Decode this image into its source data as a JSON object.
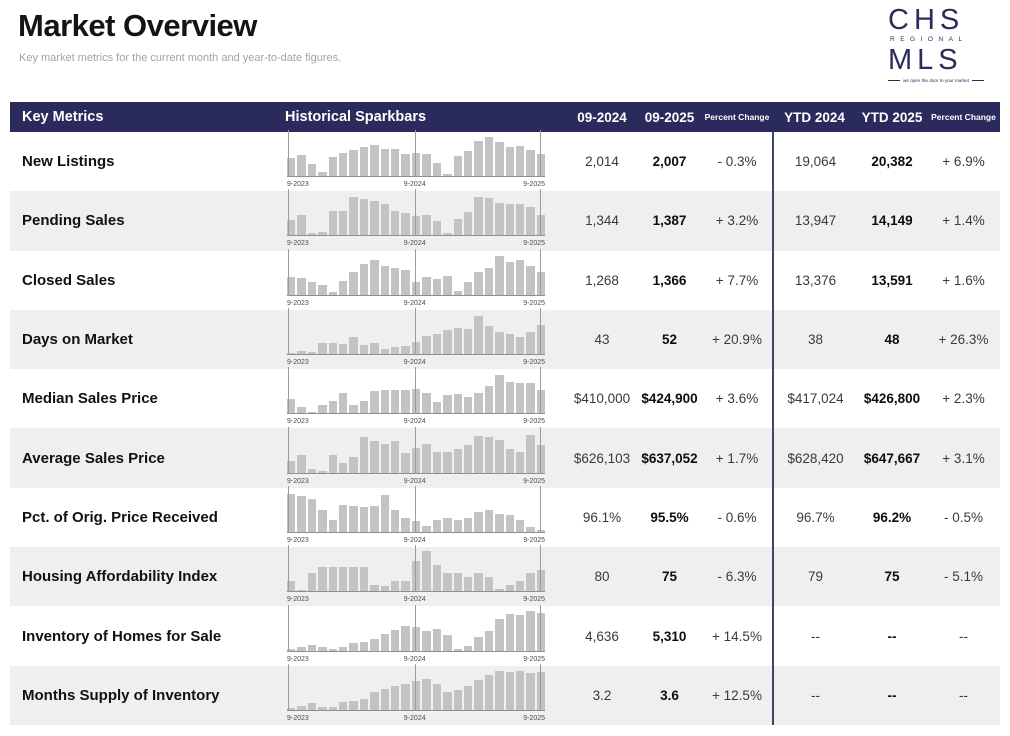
{
  "page": {
    "title": "Market Overview",
    "subtitle": "Key market metrics for the current month and year-to-date figures."
  },
  "logo": {
    "line1": "CHS",
    "line2": "REGIONAL",
    "line3": "MLS",
    "tagline": "we open the door to your market",
    "color": "#2b2b5e"
  },
  "colors": {
    "header_navy": "#2a2a5c",
    "divider_navy": "#44446a",
    "alt_row": "#efefef",
    "bar_gray": "#c3c3c3"
  },
  "table": {
    "headers": {
      "key_metrics": "Key Metrics",
      "sparkbars": "Historical Sparkbars",
      "month_prev": "09-2024",
      "month_curr": "09-2025",
      "pct_change": "Percent Change",
      "ytd_prev": "YTD 2024",
      "ytd_curr": "YTD 2025",
      "ytd_pct_change": "Percent Change"
    },
    "axis_labels": [
      "9-2023",
      "9-2024",
      "9-2025"
    ],
    "rows": [
      {
        "metric": "New Listings",
        "month_prev": "2,014",
        "month_curr": "2,007",
        "pct": "- 0.3%",
        "ytd_prev": "19,064",
        "ytd_curr": "20,382",
        "ytd_pct": "+ 6.9%",
        "spark": [
          0.45,
          0.52,
          0.3,
          0.1,
          0.48,
          0.58,
          0.65,
          0.72,
          0.78,
          0.68,
          0.68,
          0.55,
          0.58,
          0.55,
          0.32,
          0.05,
          0.5,
          0.62,
          0.88,
          0.98,
          0.85,
          0.72,
          0.75,
          0.65,
          0.55
        ]
      },
      {
        "metric": "Pending Sales",
        "month_prev": "1,344",
        "month_curr": "1,387",
        "pct": "+ 3.2%",
        "ytd_prev": "13,947",
        "ytd_curr": "14,149",
        "ytd_pct": "+ 1.4%",
        "spark": [
          0.38,
          0.5,
          0.06,
          0.08,
          0.6,
          0.6,
          0.95,
          0.9,
          0.85,
          0.78,
          0.62,
          0.55,
          0.48,
          0.5,
          0.35,
          0.06,
          0.42,
          0.58,
          0.97,
          0.93,
          0.82,
          0.78,
          0.78,
          0.7,
          0.52
        ]
      },
      {
        "metric": "Closed Sales",
        "month_prev": "1,268",
        "month_curr": "1,366",
        "pct": "+ 7.7%",
        "ytd_prev": "13,376",
        "ytd_curr": "13,591",
        "ytd_pct": "+ 1.6%",
        "spark": [
          0.45,
          0.42,
          0.32,
          0.25,
          0.06,
          0.35,
          0.58,
          0.78,
          0.88,
          0.72,
          0.68,
          0.62,
          0.32,
          0.45,
          0.4,
          0.48,
          0.1,
          0.32,
          0.58,
          0.68,
          0.98,
          0.82,
          0.88,
          0.72,
          0.58
        ]
      },
      {
        "metric": "Days on Market",
        "month_prev": "43",
        "month_curr": "52",
        "pct": "+ 20.9%",
        "ytd_prev": "38",
        "ytd_curr": "48",
        "ytd_pct": "+ 26.3%",
        "spark": [
          0.03,
          0.08,
          0.06,
          0.28,
          0.28,
          0.26,
          0.42,
          0.22,
          0.28,
          0.13,
          0.17,
          0.2,
          0.3,
          0.45,
          0.5,
          0.6,
          0.65,
          0.62,
          0.95,
          0.7,
          0.55,
          0.5,
          0.42,
          0.55,
          0.72
        ]
      },
      {
        "metric": "Median Sales Price",
        "month_prev": "$410,000",
        "month_curr": "$424,900",
        "pct": "+ 3.6%",
        "ytd_prev": "$417,024",
        "ytd_curr": "$426,800",
        "ytd_pct": "+ 2.3%",
        "spark": [
          0.35,
          0.15,
          0.04,
          0.22,
          0.32,
          0.5,
          0.2,
          0.3,
          0.55,
          0.58,
          0.58,
          0.58,
          0.62,
          0.5,
          0.28,
          0.45,
          0.48,
          0.42,
          0.5,
          0.68,
          0.95,
          0.78,
          0.75,
          0.75,
          0.58
        ]
      },
      {
        "metric": "Average Sales Price",
        "month_prev": "$626,103",
        "month_curr": "$637,052",
        "pct": "+ 1.7%",
        "ytd_prev": "$628,420",
        "ytd_curr": "$647,667",
        "ytd_pct": "+ 3.1%",
        "spark": [
          0.3,
          0.45,
          0.08,
          0.05,
          0.45,
          0.25,
          0.38,
          0.9,
          0.8,
          0.72,
          0.78,
          0.5,
          0.62,
          0.72,
          0.52,
          0.52,
          0.6,
          0.7,
          0.92,
          0.9,
          0.82,
          0.6,
          0.52,
          0.95,
          0.68
        ]
      },
      {
        "metric": "Pct. of Orig. Price Received",
        "month_prev": "96.1%",
        "month_curr": "95.5%",
        "pct": "- 0.6%",
        "ytd_prev": "96.7%",
        "ytd_curr": "96.2%",
        "ytd_pct": "- 0.5%",
        "spark": [
          0.95,
          0.9,
          0.82,
          0.55,
          0.3,
          0.68,
          0.65,
          0.62,
          0.65,
          0.92,
          0.55,
          0.35,
          0.28,
          0.15,
          0.3,
          0.35,
          0.3,
          0.35,
          0.5,
          0.55,
          0.45,
          0.42,
          0.3,
          0.12,
          0.03
        ]
      },
      {
        "metric": "Housing Affordability Index",
        "month_prev": "80",
        "month_curr": "75",
        "pct": "- 6.3%",
        "ytd_prev": "79",
        "ytd_curr": "75",
        "ytd_pct": "- 5.1%",
        "spark": [
          0.25,
          0.04,
          0.45,
          0.6,
          0.6,
          0.6,
          0.6,
          0.6,
          0.15,
          0.12,
          0.26,
          0.26,
          0.75,
          1.0,
          0.65,
          0.45,
          0.45,
          0.35,
          0.45,
          0.35,
          0.06,
          0.15,
          0.26,
          0.45,
          0.52
        ]
      },
      {
        "metric": "Inventory of Homes for Sale",
        "month_prev": "4,636",
        "month_curr": "5,310",
        "pct": "+ 14.5%",
        "ytd_prev": "--",
        "ytd_curr": "--",
        "ytd_pct": "--",
        "spark": [
          0.03,
          0.1,
          0.15,
          0.08,
          0.05,
          0.1,
          0.18,
          0.22,
          0.3,
          0.42,
          0.52,
          0.62,
          0.6,
          0.48,
          0.55,
          0.4,
          0.02,
          0.12,
          0.35,
          0.5,
          0.8,
          0.92,
          0.88,
          0.98,
          0.95
        ]
      },
      {
        "metric": "Months Supply of Inventory",
        "month_prev": "3.2",
        "month_curr": "3.6",
        "pct": "+ 12.5%",
        "ytd_prev": "--",
        "ytd_curr": "--",
        "ytd_pct": "--",
        "spark": [
          0.04,
          0.1,
          0.18,
          0.08,
          0.08,
          0.2,
          0.22,
          0.28,
          0.45,
          0.52,
          0.6,
          0.65,
          0.72,
          0.78,
          0.65,
          0.45,
          0.5,
          0.6,
          0.75,
          0.88,
          0.98,
          0.95,
          0.98,
          0.92,
          0.95
        ]
      }
    ]
  }
}
